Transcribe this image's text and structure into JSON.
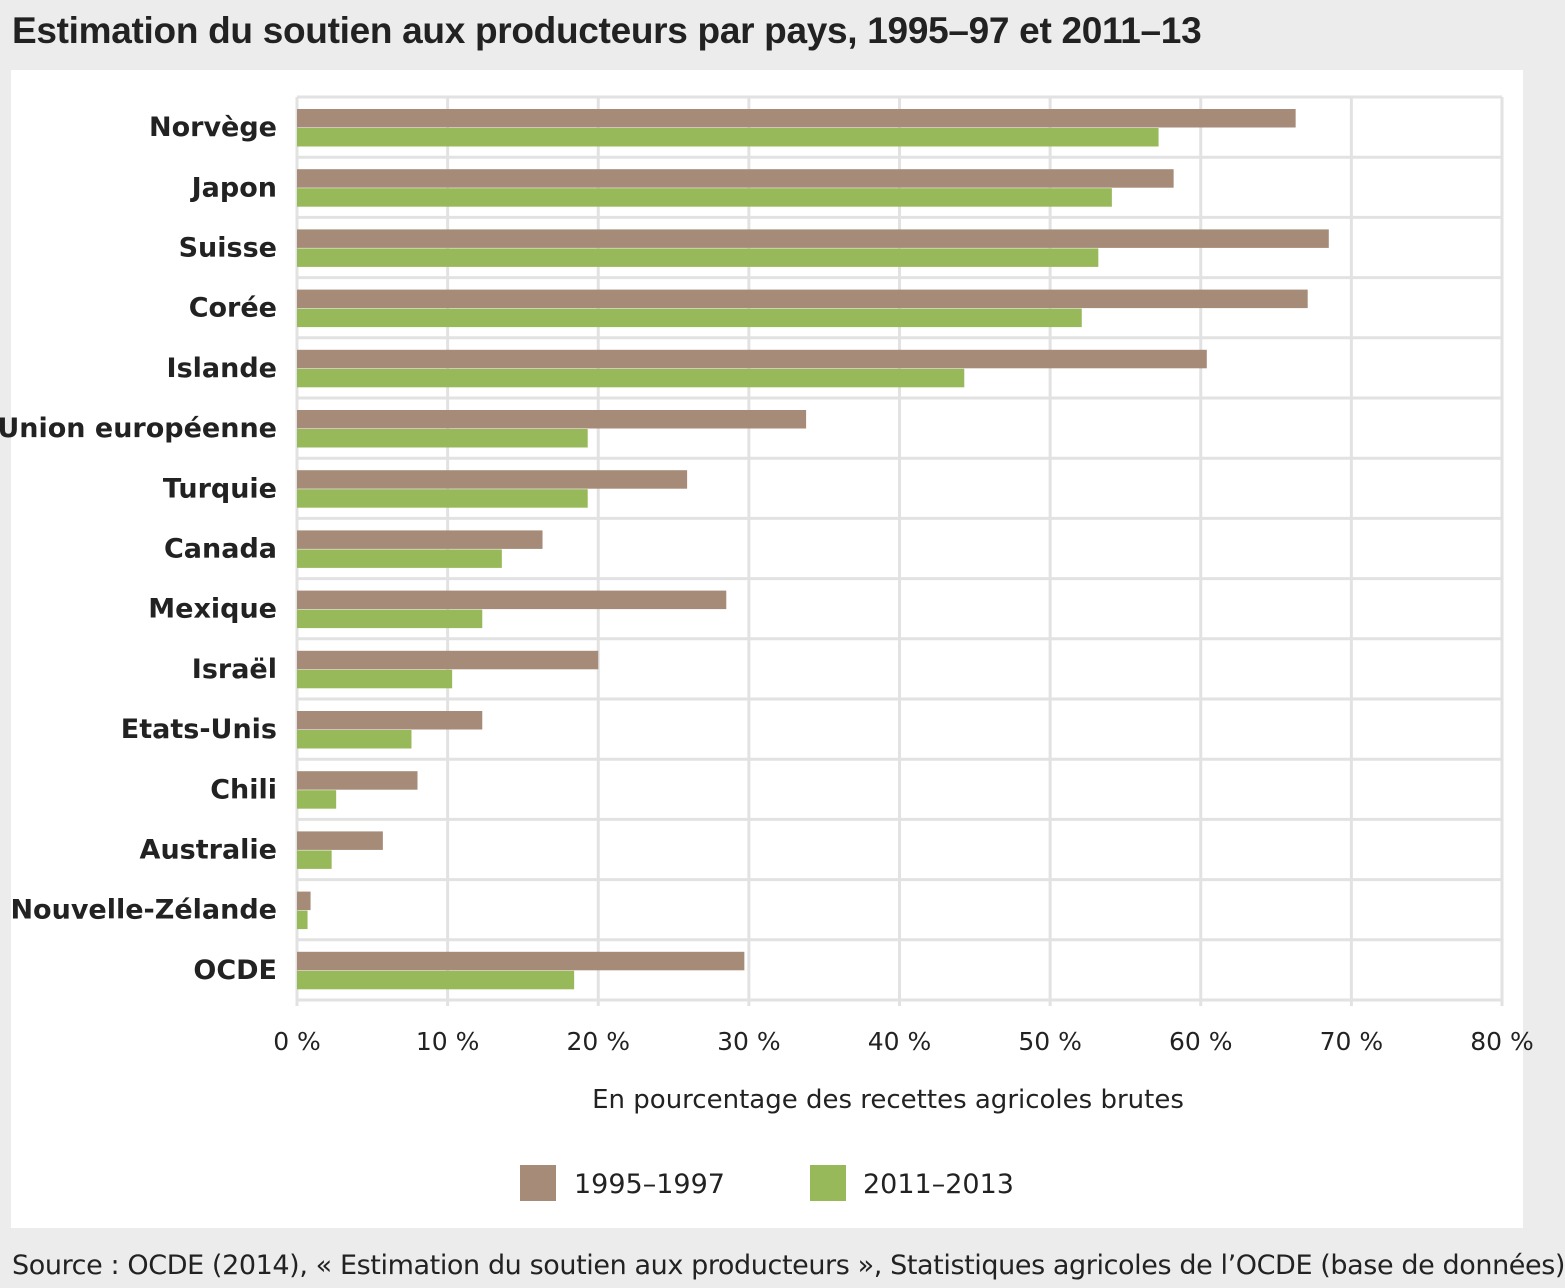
{
  "title": "Estimation du soutien aux producteurs par pays, 1995–97 et 2011–13",
  "source": "Source : OCDE (2014), « Estimation du soutien aux producteurs », Statistiques agricoles de l’OCDE (base de données)",
  "chart_data": {
    "type": "bar",
    "orientation": "horizontal",
    "categories": [
      "Norvège",
      "Japon",
      "Suisse",
      "Corée",
      "Islande",
      "Union européenne",
      "Turquie",
      "Canada",
      "Mexique",
      "Israël",
      "Etats-Unis",
      "Chili",
      "Australie",
      "Nouvelle-Zélande",
      "OCDE"
    ],
    "series": [
      {
        "name": "1995–1997",
        "color": "#a58b78",
        "values": [
          66.3,
          58.2,
          68.5,
          67.1,
          60.4,
          33.8,
          25.9,
          16.3,
          28.5,
          20.0,
          12.3,
          8.0,
          5.7,
          0.9,
          29.7
        ]
      },
      {
        "name": "2011–2013",
        "color": "#98b95a",
        "values": [
          57.2,
          54.1,
          53.2,
          52.1,
          44.3,
          19.3,
          19.3,
          13.6,
          12.3,
          10.3,
          7.6,
          2.6,
          2.3,
          0.7,
          18.4
        ]
      }
    ],
    "xlim": [
      0,
      80
    ],
    "x_ticks": [
      "0 %",
      "10 %",
      "20 %",
      "30 %",
      "40 %",
      "50 %",
      "60 %",
      "70 %",
      "80 %"
    ],
    "xlabel": "En pourcentage des recettes agricoles brutes",
    "ylabel": "",
    "grid": true,
    "legend_position": "bottom"
  }
}
